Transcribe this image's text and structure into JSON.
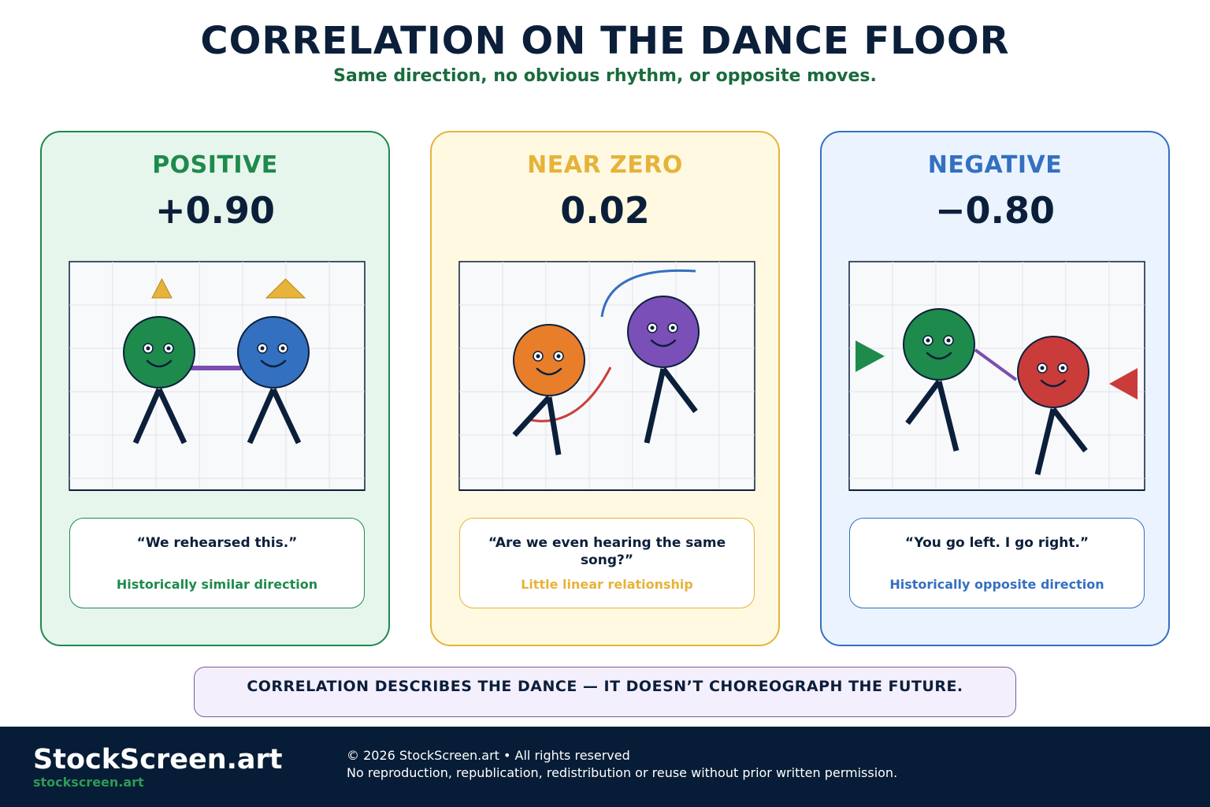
{
  "header": {
    "title": "CORRELATION ON THE DANCE FLOOR",
    "subtitle": "Same direction, no obvious rhythm, or opposite moves."
  },
  "cards": [
    {
      "label": "POSITIVE",
      "value": "+0.90",
      "quote": "“We rehearsed this.”",
      "caption": "Historically similar direction",
      "accent": "#1e8a4c",
      "background": "#e7f6ed",
      "dancers": [
        "#1e8a4c",
        "#3470c0"
      ],
      "link_color": "#7a4fb0",
      "cue_color": "#e8b33a"
    },
    {
      "label": "NEAR ZERO",
      "value": "0.02",
      "quote": "“Are we even hearing the same song?”",
      "caption": "Little linear relationship",
      "accent": "#e6b33a",
      "background": "#fff9e2",
      "dancers": [
        "#e87e2a",
        "#7b4fb8"
      ],
      "arc_colors": [
        "#c9403c",
        "#3470c0"
      ]
    },
    {
      "label": "NEGATIVE",
      "value": "−0.80",
      "quote": "“You go left. I go right.”",
      "caption": "Historically opposite direction",
      "accent": "#3470c0",
      "background": "#eaf3fe",
      "dancers": [
        "#1e8a4c",
        "#c93c3a"
      ],
      "link_color": "#7a4fb0"
    }
  ],
  "banner": {
    "text": "CORRELATION DESCRIBES THE DANCE — IT DOESN’T CHOREOGRAPH THE FUTURE."
  },
  "footer": {
    "brand": "StockScreen.art",
    "url": "stockscreen.art",
    "copyright": "© 2026 StockScreen.art • All rights reserved",
    "notice": "No reproduction, republication, redistribution or reuse without prior written permission."
  }
}
